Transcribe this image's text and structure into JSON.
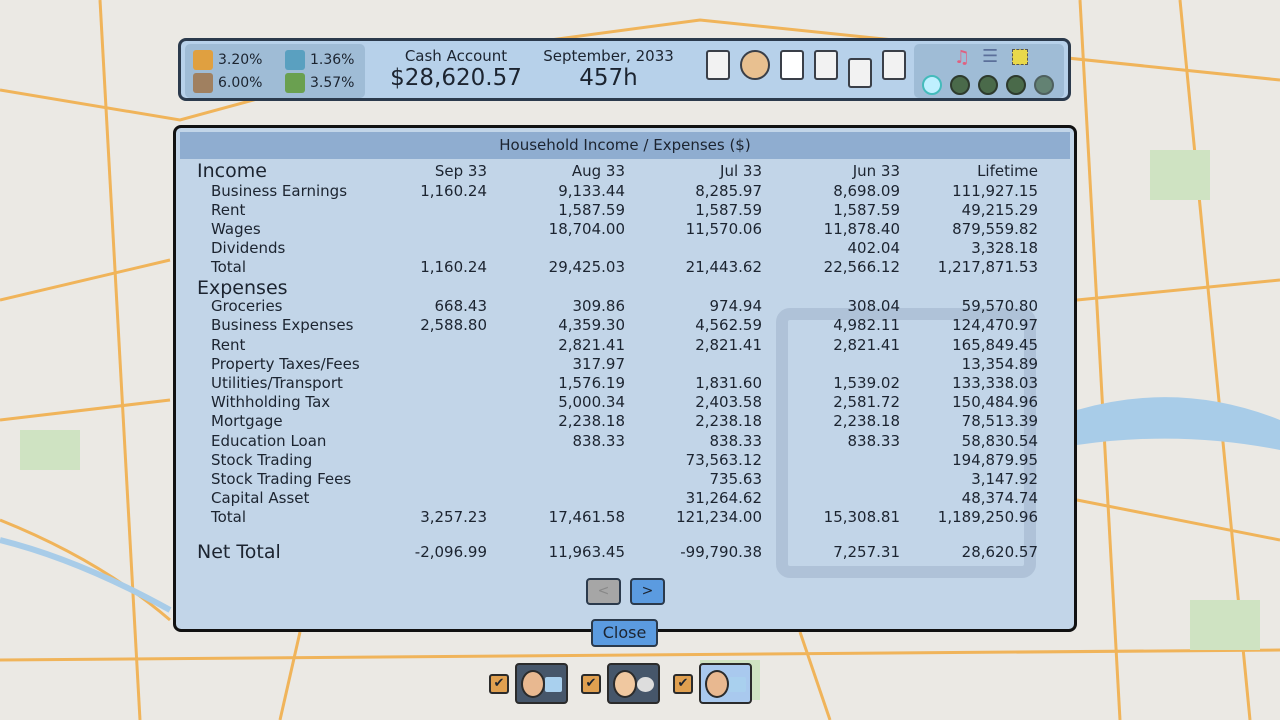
{
  "hud": {
    "stats": [
      {
        "icon": "growth-chart-icon",
        "value": "3.20%"
      },
      {
        "icon": "globe-market-icon",
        "value": "1.36%"
      },
      {
        "icon": "bank-icon",
        "value": "6.00%"
      },
      {
        "icon": "money-fire-icon",
        "value": "3.57%"
      }
    ],
    "cash_label": "Cash Account",
    "cash_value": "$28,620.57",
    "date": "September, 2033",
    "hours": "457h",
    "tools": [
      "checklist-icon",
      "assets-icon",
      "stock-chart-icon",
      "report-icon",
      "invoice-icon",
      "education-icon"
    ],
    "controls": [
      "music-icon",
      "list-icon",
      "screenshot-icon"
    ],
    "speed": [
      "pause-icon",
      "slow-icon",
      "play-icon",
      "fast-icon",
      "fastest-icon"
    ]
  },
  "dialog": {
    "title": "Household Income / Expenses ($)",
    "columns": [
      "Sep 33",
      "Aug 33",
      "Jul 33",
      "Jun 33",
      "Lifetime"
    ],
    "income_header": "Income",
    "income": [
      [
        "Business Earnings",
        "1,160.24",
        "9,133.44",
        "8,285.97",
        "8,698.09",
        "111,927.15"
      ],
      [
        "Rent",
        "",
        "1,587.59",
        "1,587.59",
        "1,587.59",
        "49,215.29"
      ],
      [
        "Wages",
        "",
        "18,704.00",
        "11,570.06",
        "11,878.40",
        "879,559.82"
      ],
      [
        "Dividends",
        "",
        "",
        "",
        "402.04",
        "3,328.18"
      ],
      [
        "Total",
        "1,160.24",
        "29,425.03",
        "21,443.62",
        "22,566.12",
        "1,217,871.53"
      ]
    ],
    "expenses_header": "Expenses",
    "expenses": [
      [
        "Groceries",
        "668.43",
        "309.86",
        "974.94",
        "308.04",
        "59,570.80"
      ],
      [
        "Business Expenses",
        "2,588.80",
        "4,359.30",
        "4,562.59",
        "4,982.11",
        "124,470.97"
      ],
      [
        "Rent",
        "",
        "2,821.41",
        "2,821.41",
        "2,821.41",
        "165,849.45"
      ],
      [
        "Property Taxes/Fees",
        "",
        "317.97",
        "",
        "",
        "13,354.89"
      ],
      [
        "Utilities/Transport",
        "",
        "1,576.19",
        "1,831.60",
        "1,539.02",
        "133,338.03"
      ],
      [
        "Withholding Tax",
        "",
        "5,000.34",
        "2,403.58",
        "2,581.72",
        "150,484.96"
      ],
      [
        "Mortgage",
        "",
        "2,238.18",
        "2,238.18",
        "2,238.18",
        "78,513.39"
      ],
      [
        "Education Loan",
        "",
        "838.33",
        "838.33",
        "838.33",
        "58,830.54"
      ],
      [
        "Stock Trading",
        "",
        "",
        "73,563.12",
        "",
        "194,879.95"
      ],
      [
        "Stock Trading Fees",
        "",
        "",
        "735.63",
        "",
        "3,147.92"
      ],
      [
        "Capital Asset",
        "",
        "",
        "31,264.62",
        "",
        "48,374.74"
      ],
      [
        "Total",
        "3,257.23",
        "17,461.58",
        "121,234.00",
        "15,308.81",
        "1,189,250.96"
      ]
    ],
    "net": [
      "Net Total",
      "-2,096.99",
      "11,963.45",
      "-99,790.38",
      "7,257.31",
      "28,620.57"
    ],
    "prev_label": "<",
    "next_label": ">",
    "close_label": "Close"
  },
  "family": [
    {
      "checked": true,
      "check": "✔",
      "selected": false
    },
    {
      "checked": true,
      "check": "✔",
      "selected": false
    },
    {
      "checked": true,
      "check": "✔",
      "selected": true
    }
  ]
}
